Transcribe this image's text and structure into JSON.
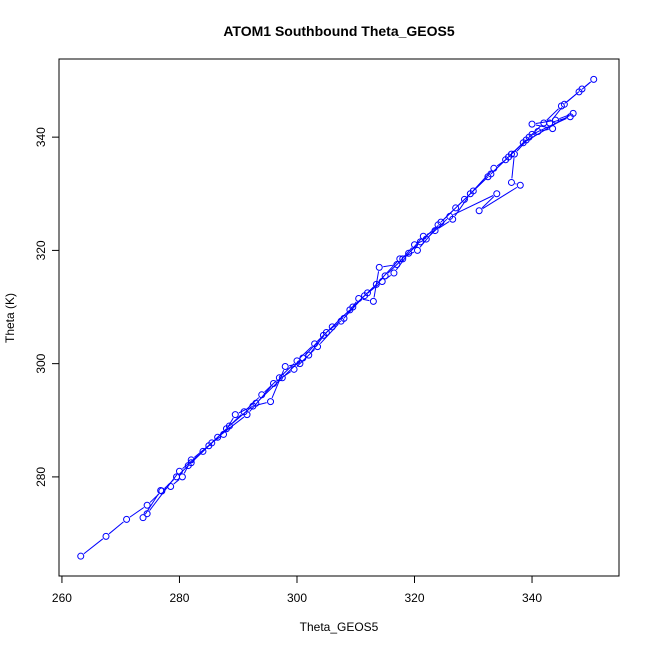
{
  "chart_data": {
    "type": "scatter",
    "title": "ATOM1 Southbound Theta_GEOS5",
    "xlabel": "Theta_GEOS5",
    "ylabel": "Theta (K)",
    "xlim": [
      259.5,
      354.8
    ],
    "ylim": [
      262.5,
      353.8
    ],
    "x_ticks": [
      260,
      280,
      300,
      320,
      340
    ],
    "y_ticks": [
      280,
      300,
      320,
      340
    ],
    "grid": false,
    "legend": "none",
    "series": [
      {
        "color": "#0000ff",
        "mode": "lines+open-circles",
        "points": [
          [
            263.2,
            266.0
          ],
          [
            267.5,
            269.5
          ],
          [
            271.0,
            272.5
          ],
          [
            274.5,
            275.0
          ],
          [
            277.0,
            277.5
          ],
          [
            279.5,
            280.0
          ],
          [
            282.0,
            282.5
          ],
          [
            285.0,
            285.5
          ],
          [
            288.0,
            288.5
          ],
          [
            291.0,
            291.5
          ],
          [
            294.0,
            294.5
          ],
          [
            297.0,
            297.5
          ],
          [
            300.0,
            300.5
          ],
          [
            303.0,
            303.5
          ],
          [
            306.0,
            306.5
          ],
          [
            309.0,
            309.5
          ],
          [
            312.0,
            312.5
          ],
          [
            315.0,
            315.5
          ],
          [
            318.0,
            318.5
          ],
          [
            321.0,
            321.5
          ],
          [
            324.0,
            324.5
          ],
          [
            327.0,
            327.5
          ],
          [
            330.0,
            330.5
          ],
          [
            333.0,
            333.5
          ],
          [
            336.0,
            336.5
          ],
          [
            339.0,
            339.5
          ],
          [
            342.0,
            342.5
          ],
          [
            345.0,
            345.5
          ],
          [
            348.0,
            348.0
          ],
          [
            350.5,
            350.2
          ],
          [
            348.5,
            348.5
          ],
          [
            345.5,
            345.8
          ],
          [
            343.0,
            342.5
          ],
          [
            346.5,
            343.6
          ],
          [
            340.0,
            340.5
          ],
          [
            337.0,
            337.0
          ],
          [
            336.5,
            332.0
          ],
          [
            338.0,
            331.5
          ],
          [
            331.0,
            327.0
          ],
          [
            334.0,
            330.0
          ],
          [
            326.0,
            326.0
          ],
          [
            322.0,
            322.0
          ],
          [
            320.0,
            321.0
          ],
          [
            317.0,
            317.5
          ],
          [
            314.0,
            317.0
          ],
          [
            313.0,
            311.0
          ],
          [
            310.5,
            311.5
          ],
          [
            308.0,
            308.0
          ],
          [
            305.0,
            305.5
          ],
          [
            302.0,
            301.5
          ],
          [
            300.5,
            300.0
          ],
          [
            298.0,
            299.5
          ],
          [
            295.5,
            293.3
          ],
          [
            292.5,
            292.5
          ],
          [
            289.5,
            291.0
          ],
          [
            287.5,
            287.5
          ],
          [
            285.5,
            286.0
          ],
          [
            282.0,
            283.0
          ],
          [
            280.5,
            280.0
          ],
          [
            278.5,
            278.3
          ],
          [
            276.8,
            277.6
          ],
          [
            273.8,
            272.8
          ],
          [
            274.5,
            273.5
          ],
          [
            280.0,
            281.0
          ],
          [
            284.0,
            284.5
          ],
          [
            288.5,
            289.0
          ],
          [
            293.0,
            293.0
          ],
          [
            297.5,
            297.5
          ],
          [
            301.0,
            301.0
          ],
          [
            304.5,
            305.0
          ],
          [
            309.5,
            310.0
          ],
          [
            313.5,
            314.0
          ],
          [
            317.5,
            318.5
          ],
          [
            320.5,
            320.0
          ],
          [
            324.5,
            325.0
          ],
          [
            328.5,
            329.0
          ],
          [
            332.5,
            333.0
          ],
          [
            336.5,
            337.0
          ],
          [
            339.5,
            340.0
          ],
          [
            341.0,
            341.0
          ],
          [
            343.5,
            341.5
          ],
          [
            340.0,
            342.3
          ],
          [
            344.0,
            343.0
          ],
          [
            347.0,
            344.2
          ],
          [
            338.5,
            339.0
          ],
          [
            335.5,
            336.0
          ],
          [
            333.5,
            334.5
          ],
          [
            329.5,
            330.0
          ],
          [
            326.5,
            325.5
          ],
          [
            323.5,
            323.5
          ],
          [
            321.5,
            322.5
          ],
          [
            319.0,
            319.5
          ],
          [
            316.5,
            316.0
          ],
          [
            314.5,
            314.5
          ],
          [
            311.5,
            312.0
          ],
          [
            307.5,
            307.5
          ],
          [
            303.5,
            303.0
          ],
          [
            299.5,
            299.0
          ],
          [
            296.0,
            296.5
          ],
          [
            291.5,
            291.0
          ],
          [
            286.5,
            287.0
          ],
          [
            281.5,
            282.0
          ]
        ]
      }
    ]
  }
}
